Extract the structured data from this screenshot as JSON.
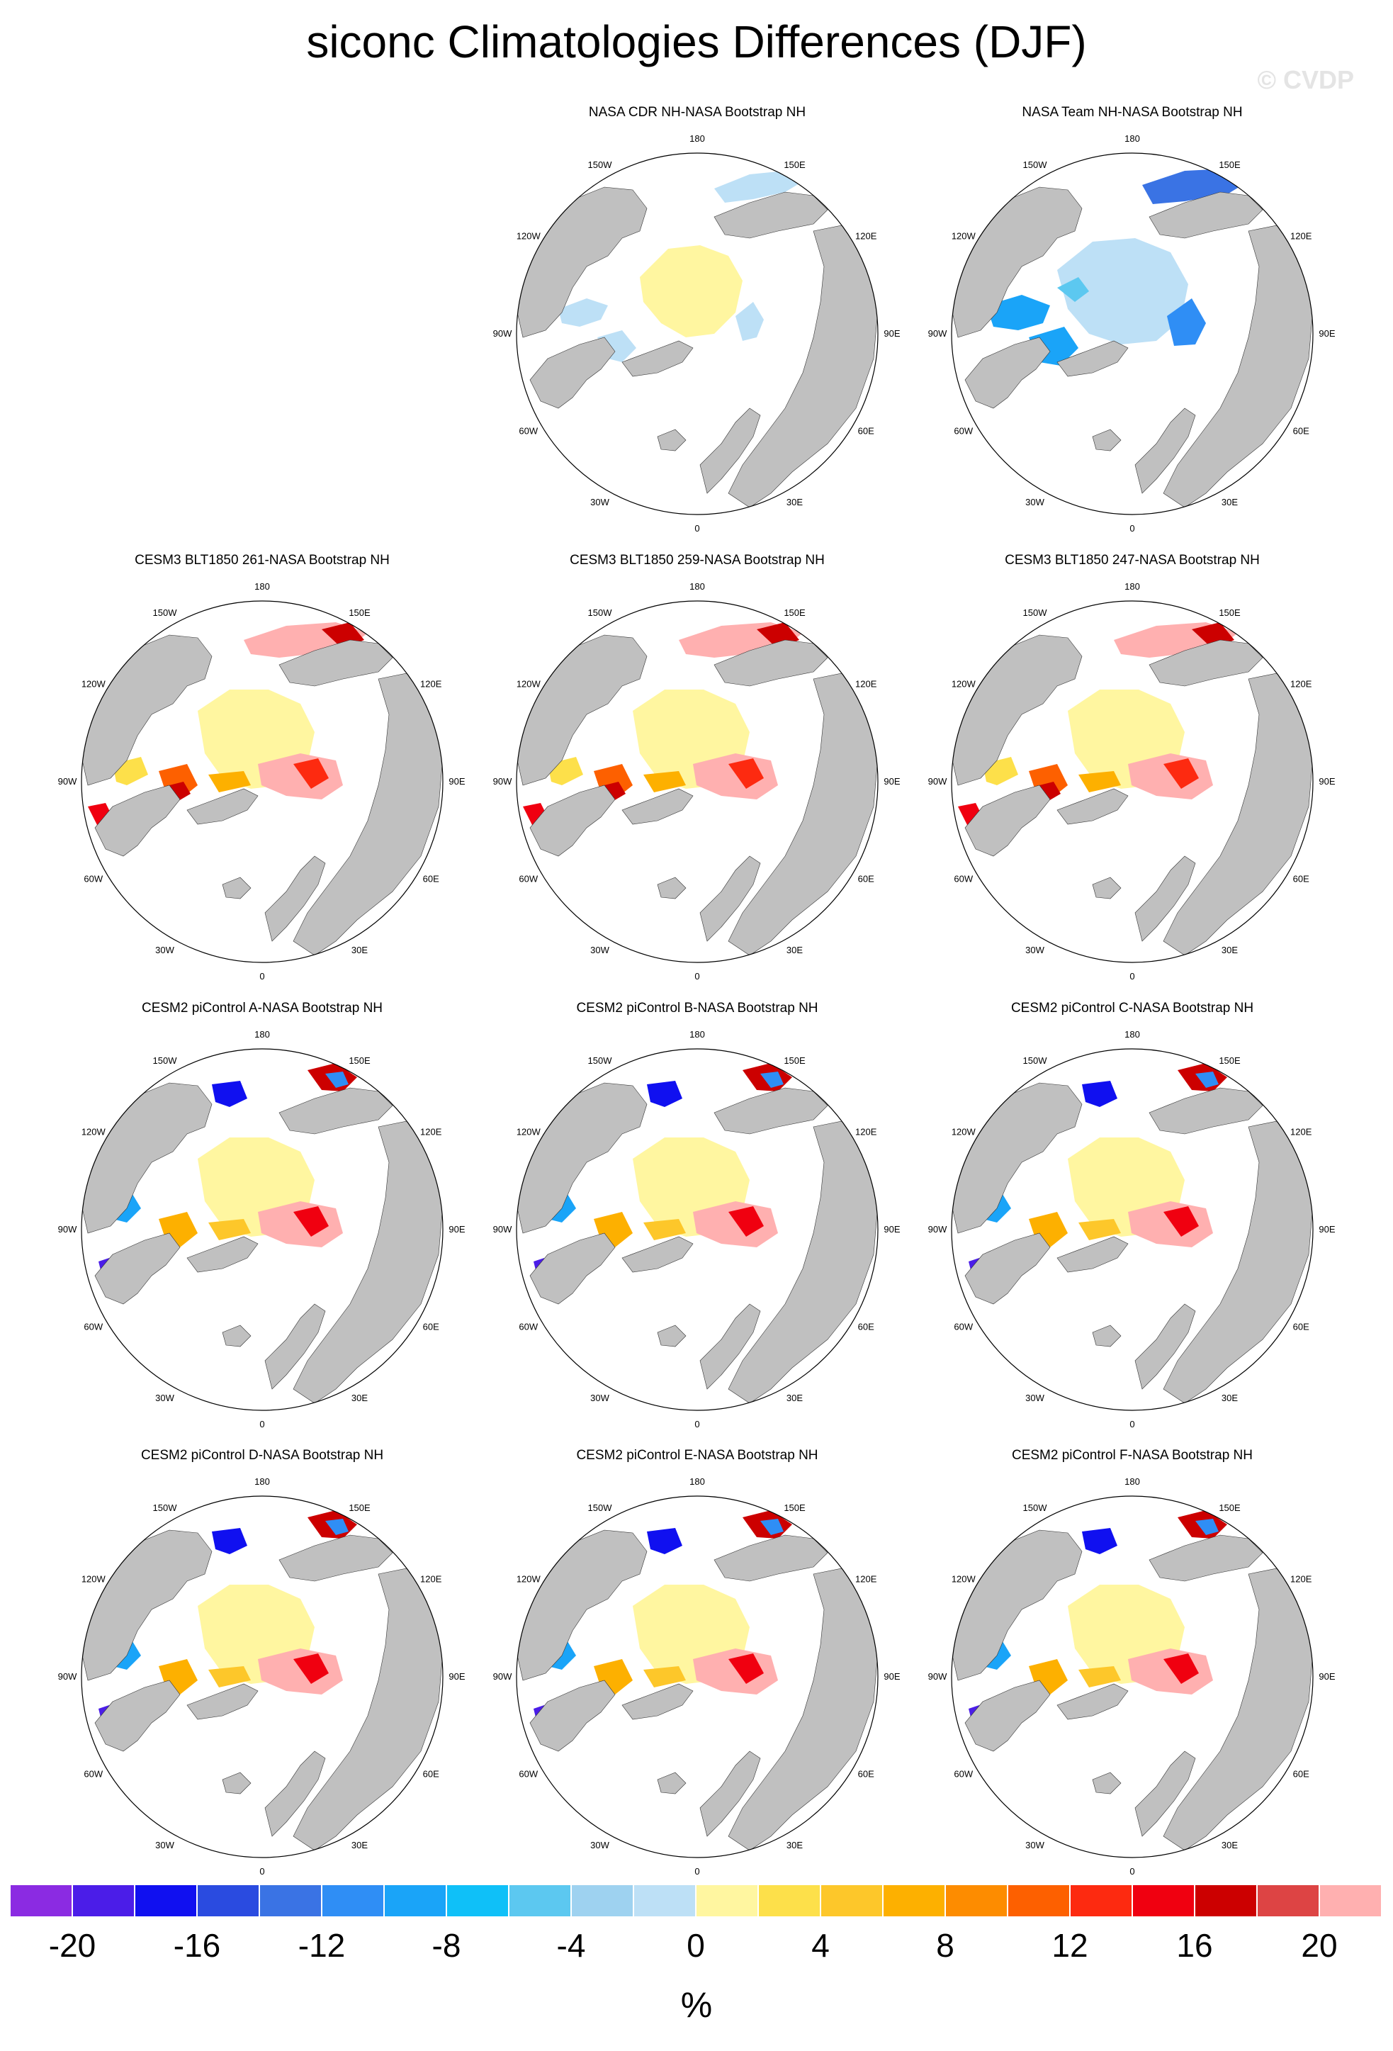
{
  "title": "siconc Climatologies Differences (DJF)",
  "watermark": "© CVDP",
  "lon_labels": [
    "180",
    "150E",
    "120E",
    "90E",
    "60E",
    "30E",
    "0",
    "30W",
    "60W",
    "90W",
    "120W",
    "150W"
  ],
  "panels": [
    {
      "title": "NASA CDR NH-NASA Bootstrap NH",
      "style": "cdr"
    },
    {
      "title": "NASA Team NH-NASA Bootstrap NH",
      "style": "team"
    },
    {
      "title": "CESM3 BLT1850 261-NASA Bootstrap NH",
      "style": "cesm3"
    },
    {
      "title": "CESM3 BLT1850 259-NASA Bootstrap NH",
      "style": "cesm3"
    },
    {
      "title": "CESM3 BLT1850 247-NASA Bootstrap NH",
      "style": "cesm3"
    },
    {
      "title": "CESM2 piControl A-NASA Bootstrap NH",
      "style": "cesm2"
    },
    {
      "title": "CESM2 piControl B-NASA Bootstrap NH",
      "style": "cesm2"
    },
    {
      "title": "CESM2 piControl C-NASA Bootstrap NH",
      "style": "cesm2"
    },
    {
      "title": "CESM2 piControl D-NASA Bootstrap NH",
      "style": "cesm2"
    },
    {
      "title": "CESM2 piControl E-NASA Bootstrap NH",
      "style": "cesm2"
    },
    {
      "title": "CESM2 piControl F-NASA Bootstrap NH",
      "style": "cesm2"
    }
  ],
  "colorbar": {
    "colors": [
      "#8b2be2",
      "#4b1de8",
      "#1010f0",
      "#2a4be0",
      "#3a73e4",
      "#2f8ef5",
      "#1aa4f8",
      "#0fc0f8",
      "#5cc8f0",
      "#9ed2f0",
      "#bde0f6",
      "#fff6a0",
      "#fde04a",
      "#fdc72a",
      "#fdb000",
      "#fd8c00",
      "#fd6000",
      "#fd2a10",
      "#f00010",
      "#cc0000",
      "#dd4444",
      "#ffb0b0"
    ],
    "labels": [
      "-20",
      "-16",
      "-12",
      "-8",
      "-4",
      "0",
      "4",
      "8",
      "12",
      "16",
      "20"
    ],
    "units": "%"
  },
  "colors": {
    "land": "#c0c0c0",
    "ocean": "#ffffff",
    "outline": "#000000"
  }
}
